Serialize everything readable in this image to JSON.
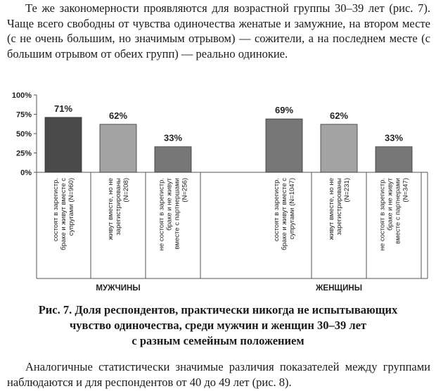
{
  "paragraph_top": "Те же закономерности проявляются для возрастной группы 30–39 лет (рис. 7). Чаще всего свободны от чувства одиночества женатые и замужние, на втором месте (с не очень большим, но значимым отрывом) — сожители, а на последнем месте (с большим отрывом от обеих групп) — реально одинокие.",
  "caption_lines": [
    "Рис. 7. Доля респондентов, практически никогда не испытывающих",
    "чувство одиночества, среди мужчин и женщин 30–39 лет",
    "с разным семейным положением"
  ],
  "paragraph_bottom": "Аналогичные статистически значимые различия показателей между группами наблюдаются и для респондентов от 40 до 49 лет (рис. 8).",
  "chart_data": {
    "type": "bar",
    "ylim": [
      0,
      100
    ],
    "y_ticks": [
      "0%",
      "25%",
      "50%",
      "75%",
      "100%"
    ],
    "grid": false,
    "groups": [
      {
        "name": "МУЖЧИНЫ",
        "bars": [
          {
            "category": "состоят в зарегистр. браке и живут вместе с супругами (N=960)",
            "lines": [
              "состоят в зарегистр.",
              "браке и живут вместе с",
              "супругами (N=960)"
            ],
            "value": 71,
            "label": "71%",
            "color": "#4a4a4a"
          },
          {
            "category": "живут вместе, но не зарегистрированы (N=208)",
            "lines": [
              "живут вместе, но не",
              "зарегистрированы",
              "(N=208)"
            ],
            "value": 62,
            "label": "62%",
            "color": "#a3a3a3"
          },
          {
            "category": "не состоят в зарегистр. браке и не живут вместе с партнершами (N=256)",
            "lines": [
              "не состоят в зарегистр.",
              "браке и не живут",
              "вместе с партнершами",
              "(N=256)"
            ],
            "value": 33,
            "label": "33%",
            "color": "#777777"
          }
        ]
      },
      {
        "name": "ЖЕНЩИНЫ",
        "bars": [
          {
            "category": "состоят в зарегистр. браке и живут вместе с супругами (N=1047)",
            "lines": [
              "состоят в зарегистр.",
              "браке и живут вместе с",
              "супругами (N=1047)"
            ],
            "value": 69,
            "label": "69%",
            "color": "#777777"
          },
          {
            "category": "живут вместе, но не зарегистрированы (N=231)",
            "lines": [
              "живут вместе, но не",
              "зарегистрированы",
              "(N=231)"
            ],
            "value": 62,
            "label": "62%",
            "color": "#a3a3a3"
          },
          {
            "category": "не состоят в зарегистр. браке и не живут вместе с партнерами (N=347)",
            "lines": [
              "не состоят в зарегистр.",
              "браке и не живут",
              "вместе с партнерами",
              "(N=347)"
            ],
            "value": 33,
            "label": "33%",
            "color": "#777777"
          }
        ]
      }
    ]
  }
}
